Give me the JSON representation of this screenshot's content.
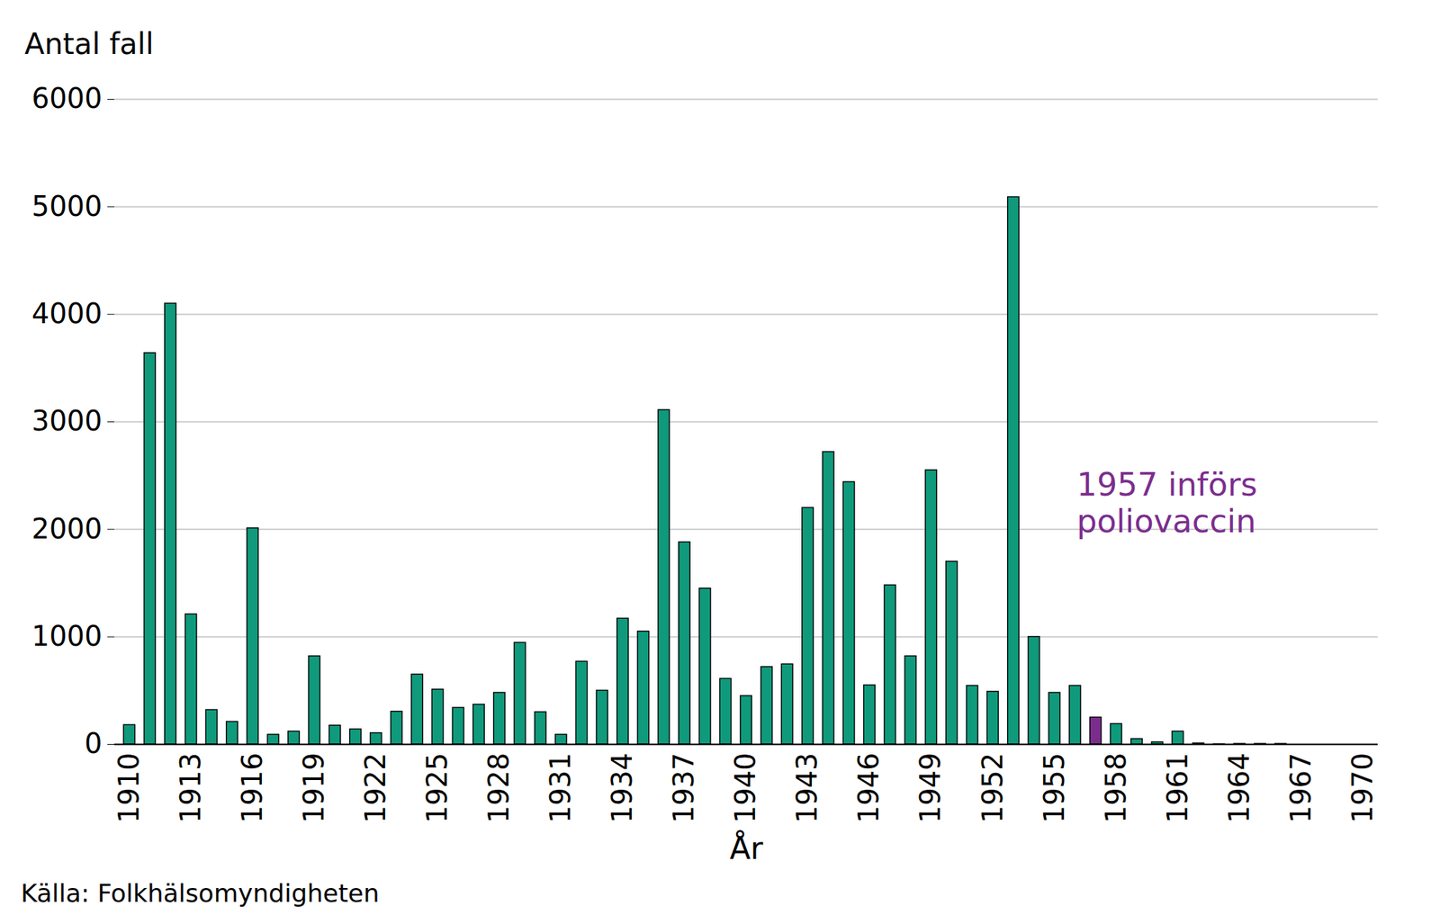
{
  "chart_data": {
    "type": "bar",
    "ylabel": "Antal fall",
    "xlabel": "År",
    "caption": "Källa: Folkhälsomyndigheten",
    "annotation": "1957 införs\npoliovaccin",
    "annotation_color": "#7b2d8e",
    "categories": [
      "1910",
      null,
      null,
      "1913",
      null,
      null,
      "1916",
      null,
      null,
      "1919",
      null,
      null,
      "1922",
      null,
      null,
      "1925",
      null,
      null,
      "1928",
      null,
      null,
      "1931",
      null,
      null,
      "1934",
      null,
      null,
      "1937",
      null,
      null,
      "1940",
      null,
      null,
      "1943",
      null,
      null,
      "1946",
      null,
      null,
      "1949",
      null,
      null,
      "1952",
      null,
      null,
      "1955",
      null,
      null,
      "1958",
      null,
      null,
      "1961",
      null,
      null,
      "1964",
      null,
      null,
      "1967",
      null,
      null,
      "1970"
    ],
    "values": [
      180,
      3640,
      4100,
      1210,
      320,
      210,
      2010,
      90,
      120,
      820,
      175,
      140,
      105,
      305,
      650,
      510,
      340,
      370,
      480,
      945,
      300,
      90,
      770,
      500,
      1170,
      1050,
      3110,
      1880,
      1450,
      610,
      450,
      720,
      745,
      2200,
      2720,
      2440,
      550,
      1480,
      820,
      2550,
      1700,
      545,
      490,
      5090,
      1000,
      480,
      545,
      250,
      190,
      50,
      20,
      120,
      10,
      2,
      5,
      5,
      5,
      0,
      0,
      0,
      0
    ],
    "colors": [
      "#0f9a7c",
      "#0f9a7c",
      "#0f9a7c",
      "#0f9a7c",
      "#0f9a7c",
      "#0f9a7c",
      "#0f9a7c",
      "#0f9a7c",
      "#0f9a7c",
      "#0f9a7c",
      "#0f9a7c",
      "#0f9a7c",
      "#0f9a7c",
      "#0f9a7c",
      "#0f9a7c",
      "#0f9a7c",
      "#0f9a7c",
      "#0f9a7c",
      "#0f9a7c",
      "#0f9a7c",
      "#0f9a7c",
      "#0f9a7c",
      "#0f9a7c",
      "#0f9a7c",
      "#0f9a7c",
      "#0f9a7c",
      "#0f9a7c",
      "#0f9a7c",
      "#0f9a7c",
      "#0f9a7c",
      "#0f9a7c",
      "#0f9a7c",
      "#0f9a7c",
      "#0f9a7c",
      "#0f9a7c",
      "#0f9a7c",
      "#0f9a7c",
      "#0f9a7c",
      "#0f9a7c",
      "#0f9a7c",
      "#0f9a7c",
      "#0f9a7c",
      "#0f9a7c",
      "#0f9a7c",
      "#0f9a7c",
      "#0f9a7c",
      "#0f9a7c",
      "#7b2d8e",
      "#0f9a7c",
      "#0f9a7c",
      "#0f9a7c",
      "#0f9a7c",
      "#0f9a7c",
      "#0f9a7c",
      "#0f9a7c",
      "#0f9a7c",
      "#0f9a7c",
      "#0f9a7c",
      "#0f9a7c",
      "#0f9a7c",
      "#0f9a7c"
    ],
    "ylim": [
      0,
      6000
    ],
    "yticks": [
      0,
      1000,
      2000,
      3000,
      4000,
      5000,
      6000
    ],
    "grid": true
  }
}
